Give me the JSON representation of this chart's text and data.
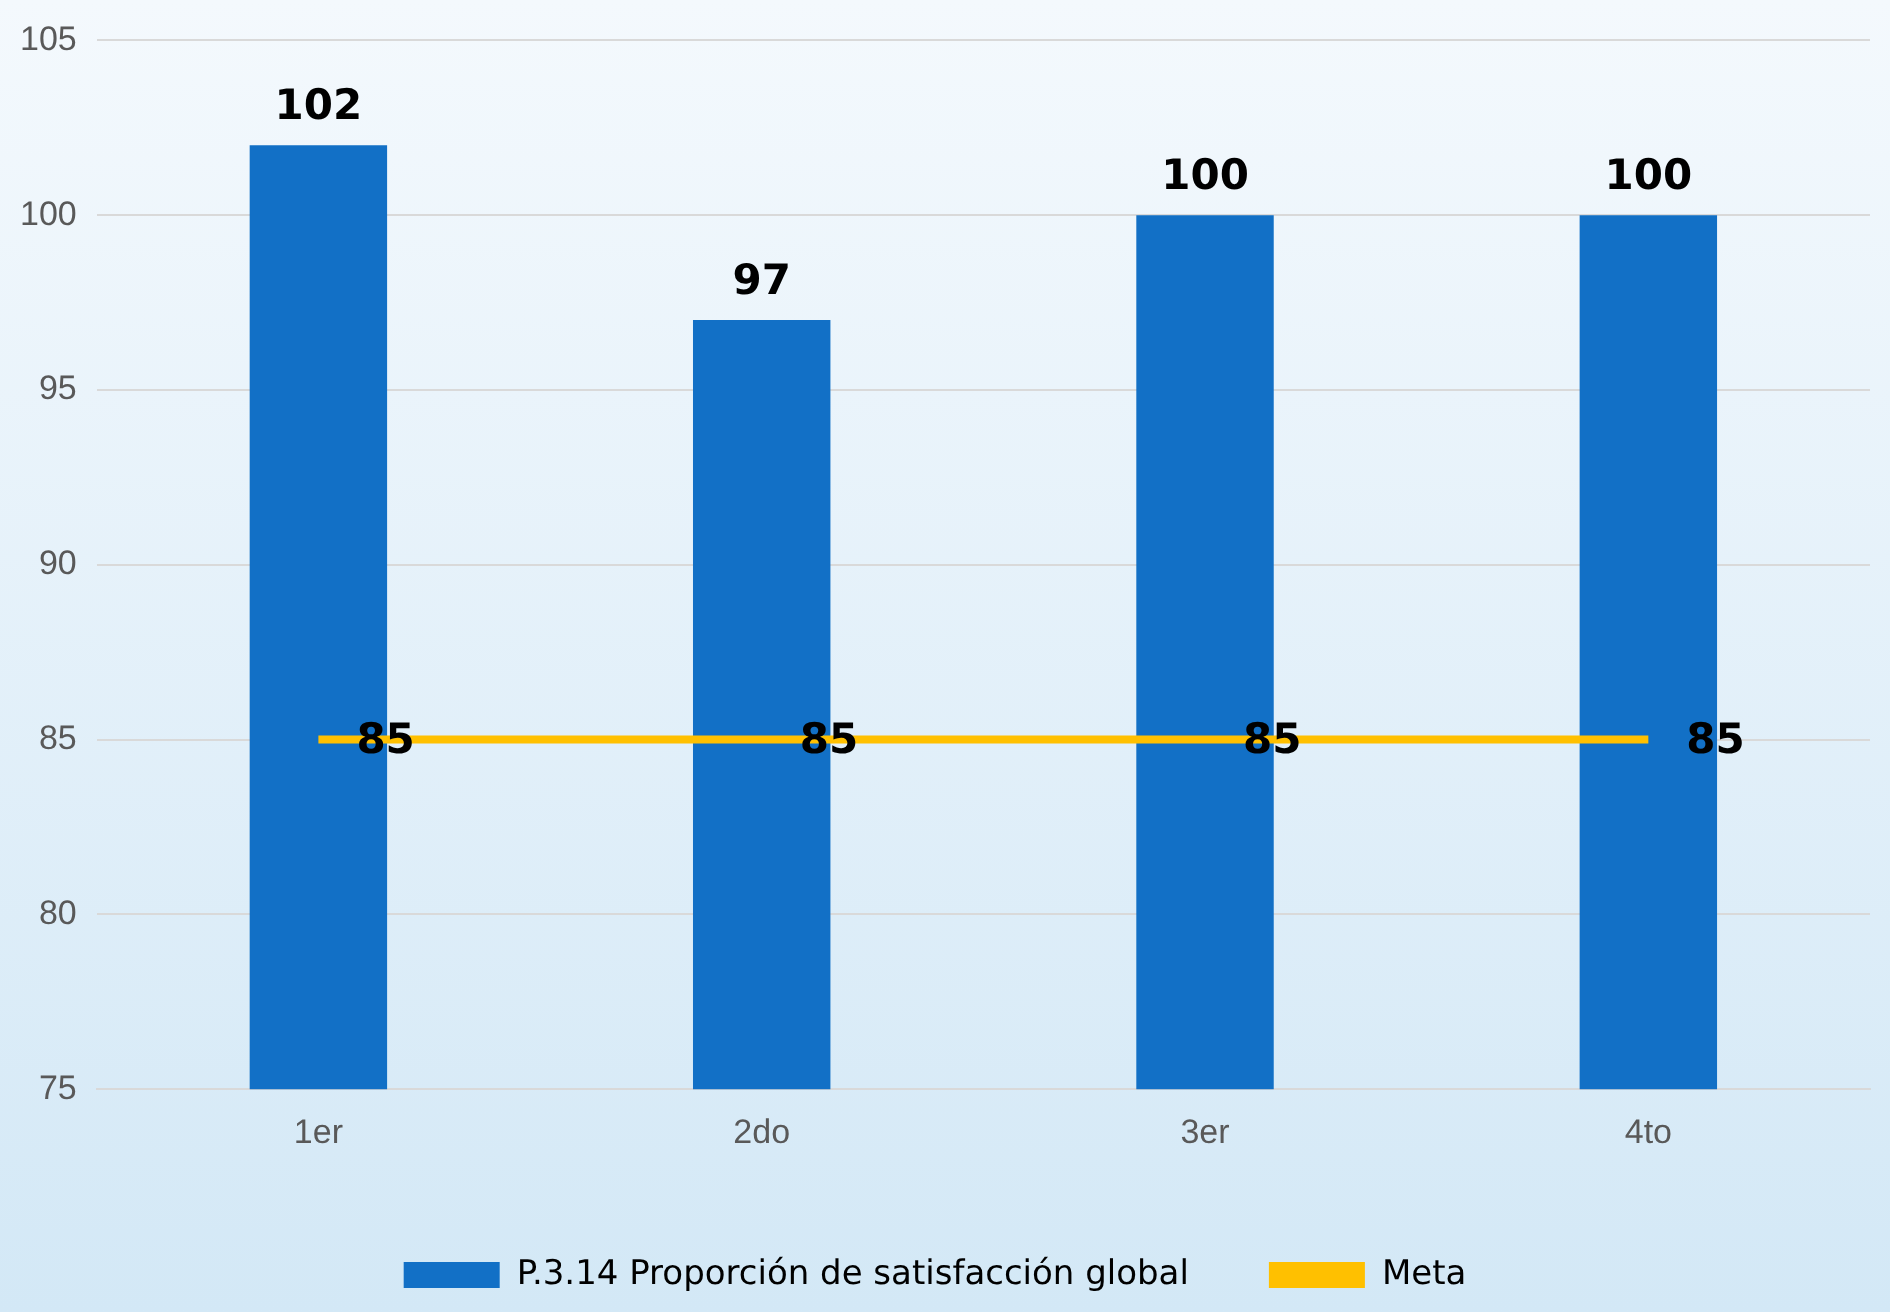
{
  "chart_data": {
    "type": "bar",
    "categories": [
      "1er",
      "2do",
      "3er",
      "4to"
    ],
    "series": [
      {
        "name": "P.3.14 Proporción de satisfacción global",
        "color": "#1270c6",
        "values": [
          102,
          97,
          100,
          100
        ]
      },
      {
        "name": "Meta",
        "type": "line",
        "color": "#ffc000",
        "values": [
          85,
          85,
          85,
          85
        ]
      }
    ],
    "ylim": [
      75,
      105
    ],
    "yticks": [
      75,
      80,
      85,
      90,
      95,
      100,
      105
    ],
    "grid": "y",
    "legend": "bottom",
    "data_labels": true,
    "marker": "none"
  }
}
